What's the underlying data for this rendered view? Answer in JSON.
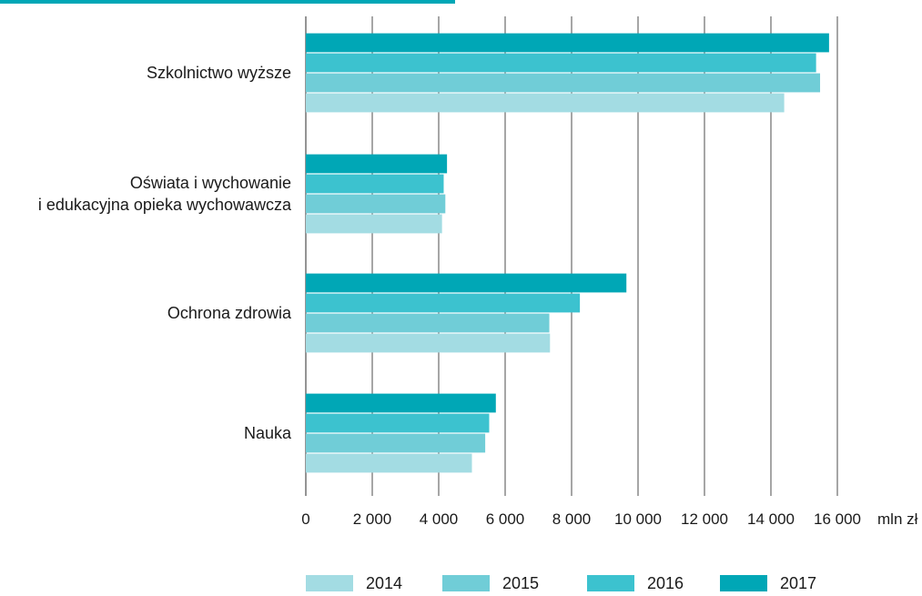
{
  "chart_data": {
    "type": "bar",
    "orientation": "horizontal",
    "categories": [
      [
        "Szkolnictwo wyższe"
      ],
      [
        "Oświata i wychowanie",
        "i edukacyjna opieka wychowawcza"
      ],
      [
        "Ochrona zdrowia"
      ],
      [
        "Nauka"
      ]
    ],
    "series": [
      {
        "name": "2014",
        "color": "#a3dce3",
        "values": [
          14400,
          4100,
          7350,
          5000
        ]
      },
      {
        "name": "2015",
        "color": "#70cdd7",
        "values": [
          15480,
          4200,
          7330,
          5400
        ]
      },
      {
        "name": "2016",
        "color": "#3cc2cf",
        "values": [
          15360,
          4150,
          8250,
          5520
        ]
      },
      {
        "name": "2017",
        "color": "#00a7b6",
        "values": [
          15750,
          4250,
          9650,
          5720
        ]
      }
    ],
    "x_ticks": [
      "0",
      "2 000",
      "4 000",
      "6 000",
      "8 000",
      "10 000",
      "12 000",
      "14 000",
      "16 000"
    ],
    "x_unit": "mln zł",
    "xlim": [
      0,
      16000
    ],
    "grid": true,
    "legend_position": "bottom"
  },
  "colors": {
    "gridline": "#4d4d4d",
    "top_strip": "#00a7b6"
  }
}
